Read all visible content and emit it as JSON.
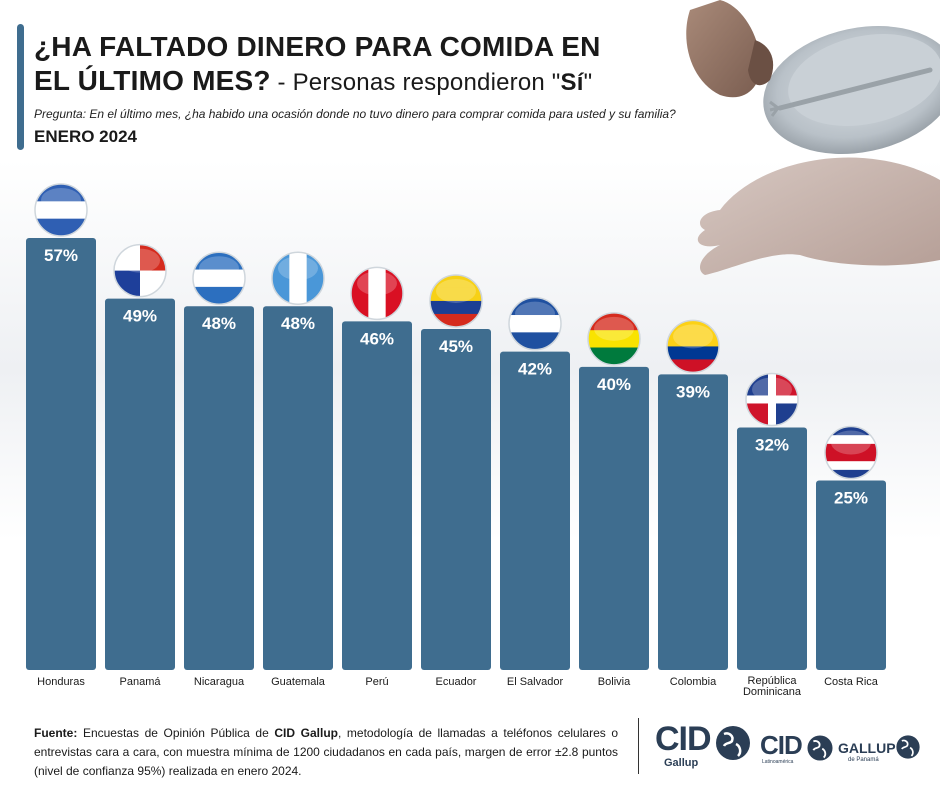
{
  "title": {
    "line1": "¿HA FALTADO DINERO PARA COMIDA EN",
    "line2": "EL ÚLTIMO MES?",
    "subtitle_prefix": " - Personas respondieron \"",
    "subtitle_bold": "Sí",
    "subtitle_suffix": "\""
  },
  "question": "Pregunta: En el último mes, ¿ha habido una ocasión donde no tuvo dinero para comprar comida para usted y su familia?",
  "period": "ENERO 2024",
  "colors": {
    "bar": "#3f6d8f",
    "accent": "#3f6d8f",
    "text": "#1a1a1a"
  },
  "chart_data": {
    "type": "bar",
    "categories": [
      "Honduras",
      "Panamá",
      "Nicaragua",
      "Guatemala",
      "Perú",
      "Ecuador",
      "El Salvador",
      "Bolivia",
      "Colombia",
      "República Dominicana",
      "Costa Rica"
    ],
    "category_lines": [
      [
        "Honduras"
      ],
      [
        "Panamá"
      ],
      [
        "Nicaragua"
      ],
      [
        "Guatemala"
      ],
      [
        "Perú"
      ],
      [
        "Ecuador"
      ],
      [
        "El Salvador"
      ],
      [
        "Bolivia"
      ],
      [
        "Colombia"
      ],
      [
        "República",
        "Dominicana"
      ],
      [
        "Costa Rica"
      ]
    ],
    "values": [
      57,
      49,
      48,
      48,
      46,
      45,
      42,
      40,
      39,
      32,
      25
    ],
    "value_labels": [
      "57%",
      "49%",
      "48%",
      "48%",
      "46%",
      "45%",
      "42%",
      "40%",
      "39%",
      "32%",
      "25%"
    ],
    "unit": "%",
    "ylim": [
      0,
      57
    ],
    "flag_icons": [
      "honduras-flag-icon",
      "panama-flag-icon",
      "nicaragua-flag-icon",
      "guatemala-flag-icon",
      "peru-flag-icon",
      "ecuador-flag-icon",
      "el-salvador-flag-icon",
      "bolivia-flag-icon",
      "colombia-flag-icon",
      "dominican-republic-flag-icon",
      "costa-rica-flag-icon"
    ]
  },
  "footer": {
    "source_label": "Fuente:",
    "text_before": " Encuestas de Opinión Pública de ",
    "org": "CID Gallup",
    "text_after": ", metodología de llamadas a teléfonos celulares o entrevistas cara a cara, con muestra mínima de 1200 ciudadanos en cada país, margen de error ±2.8 puntos (nivel de confianza 95%) realizada en enero 2024."
  },
  "logos": {
    "cid_gallup": "CID",
    "cid_gallup_sub": "Gallup",
    "cid_latino": "CID",
    "cid_latino_sub": "Latinoamérica",
    "gallup_panama": "GALLUP",
    "gallup_panama_sub": "de Panamá"
  }
}
